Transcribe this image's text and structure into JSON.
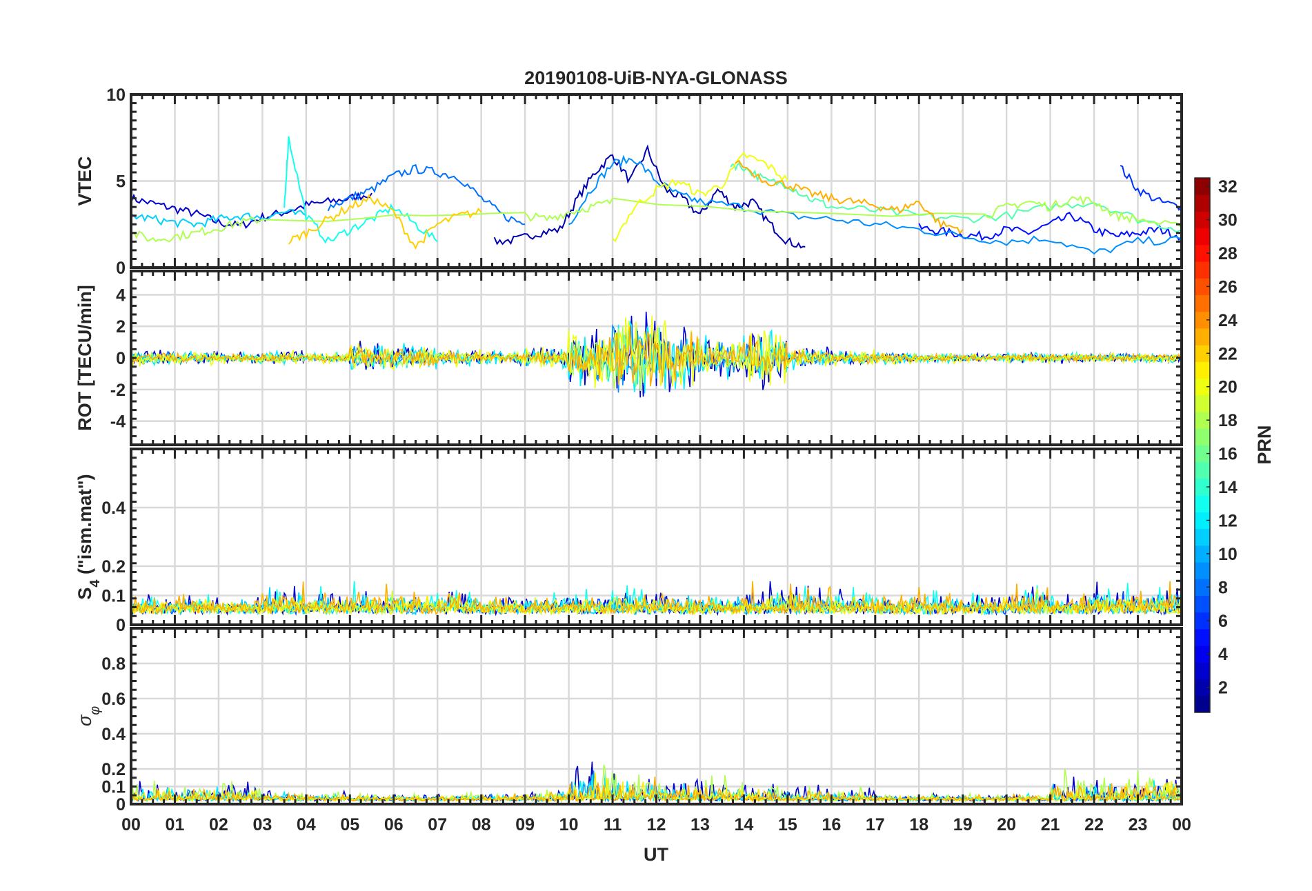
{
  "chart_data": {
    "type": "line",
    "title": "20190108-UiB-NYA-GLONASS",
    "xlabel": "UT",
    "xlim": [
      0,
      24
    ],
    "x_tick_labels": [
      "00",
      "01",
      "02",
      "03",
      "04",
      "05",
      "06",
      "07",
      "08",
      "09",
      "10",
      "11",
      "12",
      "13",
      "14",
      "15",
      "16",
      "17",
      "18",
      "19",
      "20",
      "21",
      "22",
      "23",
      "00"
    ],
    "grid": true,
    "colorbar": {
      "label": "PRN",
      "range": [
        1,
        32
      ],
      "ticks": [
        "2",
        "4",
        "6",
        "8",
        "10",
        "12",
        "14",
        "16",
        "18",
        "20",
        "22",
        "24",
        "26",
        "28",
        "30",
        "32"
      ],
      "colormap": "jet",
      "placement": "right"
    },
    "panels": [
      {
        "ylabel": "VTEC",
        "ylim": [
          0,
          10
        ],
        "yticks": [
          "0",
          "5",
          "10"
        ],
        "ytick_values": [
          0,
          5,
          10
        ],
        "kind": "lines",
        "series": [
          {
            "prn": 3,
            "x": [
              0,
              0.5,
              1,
              1.5,
              2,
              2.5,
              3,
              3.5,
              4,
              4.5,
              5,
              5.5
            ],
            "y": [
              4,
              3.7,
              3.4,
              3.1,
              2.6,
              2.4,
              2.9,
              3.2,
              3.6,
              3.8,
              4,
              4.3
            ]
          },
          {
            "prn": 2,
            "x": [
              8.3,
              8.8,
              9.3,
              9.8,
              10.2,
              10.6,
              11,
              11.4,
              11.8,
              12.2,
              12.6,
              13,
              13.4,
              13.8,
              14.2,
              14.6,
              15,
              15.4
            ],
            "y": [
              1.5,
              1.6,
              2,
              2.2,
              4,
              5.5,
              6.5,
              5,
              6.8,
              4.5,
              4,
              3,
              4.5,
              3.5,
              3.8,
              2.5,
              1.5,
              1.2
            ]
          },
          {
            "prn": 5,
            "x": [
              18,
              18.5,
              19,
              19.5,
              20,
              20.5,
              21,
              21.5,
              22,
              22.5,
              23,
              23.5,
              24
            ],
            "y": [
              2.3,
              2.1,
              1.9,
              1.8,
              2.2,
              2,
              2.5,
              3,
              2.2,
              1.8,
              2,
              2.2,
              1.8
            ]
          },
          {
            "prn": 6,
            "x": [
              22.6,
              23,
              23.5,
              24
            ],
            "y": [
              5.8,
              4.5,
              3.8,
              3.5
            ]
          },
          {
            "prn": 8,
            "x": [
              4.5,
              5,
              5.5,
              6,
              6.5,
              7,
              7.5,
              8,
              8.5,
              9
            ],
            "y": [
              3.5,
              4,
              4.5,
              5.3,
              5.7,
              5.5,
              5.2,
              4,
              3,
              2.5
            ]
          },
          {
            "prn": 9,
            "x": [
              10,
              10.5,
              11,
              11.5,
              12,
              12.5,
              13,
              14,
              15,
              16,
              17,
              18,
              19,
              20,
              21,
              22,
              23,
              24
            ],
            "y": [
              2.5,
              4.5,
              6,
              6.3,
              5,
              4.2,
              3.8,
              3.5,
              3,
              2.8,
              2.5,
              2.2,
              1.8,
              1.5,
              1.7,
              0.8,
              1.5,
              1.6
            ]
          },
          {
            "prn": 11,
            "x": [
              0,
              0.5,
              1,
              1.5,
              2,
              2.5,
              3,
              3.5,
              4
            ],
            "y": [
              3,
              2.8,
              2.6,
              2.5,
              2.8,
              3,
              2.9,
              3.2,
              3
            ]
          },
          {
            "prn": 13,
            "x": [
              3.5,
              3.6,
              4,
              4.5,
              5,
              5.5,
              6,
              6.5,
              7
            ],
            "y": [
              3.5,
              7.5,
              3,
              1.5,
              2.2,
              2.8,
              3.5,
              2.5,
              1.5
            ]
          },
          {
            "prn": 15,
            "x": [
              13.7,
              14,
              14.5,
              15,
              15.5,
              16,
              17,
              18,
              19,
              20,
              21,
              22,
              23,
              24
            ],
            "y": [
              6,
              5.8,
              5,
              4.8,
              4,
              3.5,
              3.3,
              3,
              2.8,
              3,
              3.5,
              3.8,
              2.8,
              2.2
            ]
          },
          {
            "prn": 18,
            "x": [
              0,
              0.5,
              1,
              1.5,
              2,
              2.5,
              3,
              9,
              9.5,
              10,
              10.5,
              11,
              19.5,
              20,
              20.5,
              21,
              21.5,
              22,
              22.5,
              23,
              24
            ],
            "y": [
              2,
              1.6,
              1.8,
              2,
              2.3,
              2.6,
              2.8,
              3,
              2.8,
              3.2,
              3.5,
              3.8,
              3,
              3.5,
              3.8,
              3.5,
              4,
              3.8,
              3,
              2.8,
              2.3
            ]
          },
          {
            "prn": 20,
            "x": [
              11,
              11.5,
              12,
              12.5,
              13,
              13.5,
              14,
              14.5,
              15
            ],
            "y": [
              1.5,
              3.5,
              4.5,
              5,
              4.2,
              4.8,
              6.5,
              6,
              5
            ]
          },
          {
            "prn": 22,
            "x": [
              3.6,
              4,
              4.5,
              5,
              5.5,
              6,
              6.5,
              7,
              7.5,
              8
            ],
            "y": [
              1.5,
              2,
              2.8,
              3.5,
              4,
              3.2,
              1.2,
              2.5,
              3,
              3.2
            ]
          },
          {
            "prn": 23,
            "x": [
              13.8,
              14.5,
              15,
              15.5,
              16,
              16.5,
              17,
              17.5,
              18,
              18.5,
              19
            ],
            "y": [
              6.2,
              5,
              4.8,
              4.3,
              4,
              3.8,
              3.6,
              3.3,
              3.8,
              2.5,
              2.2
            ]
          }
        ]
      },
      {
        "ylabel": "ROT [TECU/min]",
        "ylim": [
          -5.5,
          5.5
        ],
        "yticks": [
          "-4",
          "-2",
          "0",
          "2",
          "4"
        ],
        "ytick_values": [
          -4,
          -2,
          0,
          2,
          4
        ],
        "kind": "noise",
        "center": 0,
        "hourly_amplitude": [
          0.6,
          0.5,
          0.4,
          0.5,
          0.4,
          1.2,
          1.0,
          0.6,
          0.5,
          0.8,
          2.2,
          3.5,
          2.6,
          1.6,
          2.2,
          0.8,
          0.6,
          0.5,
          0.4,
          0.3,
          0.4,
          0.4,
          0.4,
          0.4
        ],
        "series_prns": [
          3,
          9,
          12,
          18,
          20,
          23
        ]
      },
      {
        "ylabel": "S4 (\"ism.mat\")",
        "ylabel_main": "S",
        "ylabel_sub": "4",
        "ylabel_rest": " (\"ism.mat\")",
        "ylim": [
          0,
          0.6
        ],
        "yticks": [
          "0",
          "0.1",
          "0.2",
          "0.4"
        ],
        "ytick_values": [
          0,
          0.1,
          0.2,
          0.4
        ],
        "kind": "noise",
        "center": 0.06,
        "hourly_amplitude": [
          0.05,
          0.06,
          0.05,
          0.12,
          0.08,
          0.1,
          0.08,
          0.1,
          0.05,
          0.06,
          0.07,
          0.1,
          0.09,
          0.06,
          0.1,
          0.1,
          0.09,
          0.07,
          0.08,
          0.06,
          0.12,
          0.06,
          0.1,
          0.1
        ],
        "series_prns": [
          3,
          7,
          11,
          13,
          19,
          21,
          23
        ]
      },
      {
        "ylabel": "σφ",
        "ylabel_main": "σ",
        "ylabel_sub": "φ",
        "ylim": [
          0,
          1
        ],
        "yticks": [
          "0",
          "0.1",
          "0.2",
          "0.4",
          "0.6",
          "0.8"
        ],
        "ytick_values": [
          0,
          0.1,
          0.2,
          0.4,
          0.6,
          0.8
        ],
        "kind": "noise",
        "center": 0.03,
        "hourly_amplitude": [
          0.15,
          0.13,
          0.12,
          0.08,
          0.07,
          0.04,
          0.04,
          0.05,
          0.05,
          0.08,
          0.3,
          0.22,
          0.18,
          0.15,
          0.13,
          0.1,
          0.08,
          0.04,
          0.04,
          0.04,
          0.05,
          0.18,
          0.18,
          0.2
        ],
        "series_prns": [
          3,
          9,
          12,
          18,
          21,
          23
        ]
      }
    ]
  }
}
